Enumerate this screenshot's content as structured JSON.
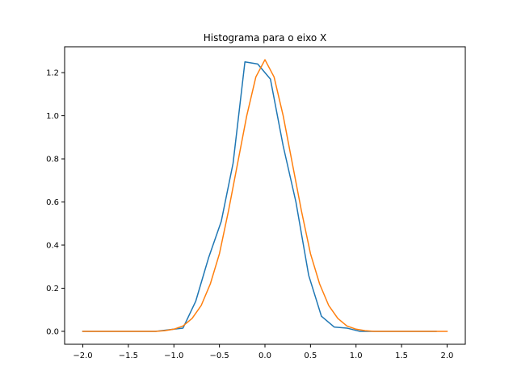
{
  "chart_data": {
    "type": "line",
    "title": "Histograma para o eixo X",
    "xlabel": "",
    "ylabel": "",
    "xlim": [
      -2.2,
      2.2
    ],
    "ylim": [
      -0.06,
      1.32
    ],
    "xticks": [
      -2.0,
      -1.5,
      -1.0,
      -0.5,
      0.0,
      0.5,
      1.0,
      1.5,
      2.0
    ],
    "xtick_labels": [
      "−2.0",
      "−1.5",
      "−1.0",
      "−0.5",
      "0.0",
      "0.5",
      "1.0",
      "1.5",
      "2.0"
    ],
    "yticks": [
      0.0,
      0.2,
      0.4,
      0.6,
      0.8,
      1.0,
      1.2
    ],
    "ytick_labels": [
      "0.0",
      "0.2",
      "0.4",
      "0.6",
      "0.8",
      "1.0",
      "1.2"
    ],
    "grid": false,
    "series": [
      {
        "color": "#1f77b4",
        "x": [
          -2.0,
          -1.2,
          -1.1,
          -1.0,
          -0.9,
          -0.76,
          -0.62,
          -0.48,
          -0.35,
          -0.22,
          -0.08,
          0.06,
          0.2,
          0.34,
          0.48,
          0.62,
          0.76,
          0.9,
          1.04,
          1.18,
          1.3,
          1.5,
          1.88
        ],
        "y": [
          0.0,
          0.0,
          0.005,
          0.01,
          0.015,
          0.14,
          0.34,
          0.51,
          0.78,
          1.25,
          1.24,
          1.17,
          0.86,
          0.6,
          0.26,
          0.07,
          0.02,
          0.015,
          0.0,
          0.0,
          0.0,
          0.0,
          0.0
        ]
      },
      {
        "color": "#ff7f0e",
        "x": [
          -2.0,
          -1.8,
          -1.6,
          -1.4,
          -1.2,
          -1.1,
          -1.0,
          -0.9,
          -0.8,
          -0.7,
          -0.6,
          -0.5,
          -0.4,
          -0.3,
          -0.2,
          -0.1,
          0.0,
          0.1,
          0.2,
          0.3,
          0.4,
          0.5,
          0.6,
          0.7,
          0.8,
          0.9,
          1.0,
          1.1,
          1.2,
          1.4,
          1.6,
          1.8,
          2.0
        ],
        "y": [
          0.0,
          0.0,
          0.0,
          0.0,
          0.0,
          0.003,
          0.01,
          0.025,
          0.06,
          0.12,
          0.22,
          0.36,
          0.56,
          0.78,
          1.0,
          1.18,
          1.26,
          1.18,
          1.0,
          0.78,
          0.56,
          0.36,
          0.22,
          0.12,
          0.06,
          0.025,
          0.01,
          0.003,
          0.0,
          0.0,
          0.0,
          0.0,
          0.0
        ]
      }
    ]
  }
}
